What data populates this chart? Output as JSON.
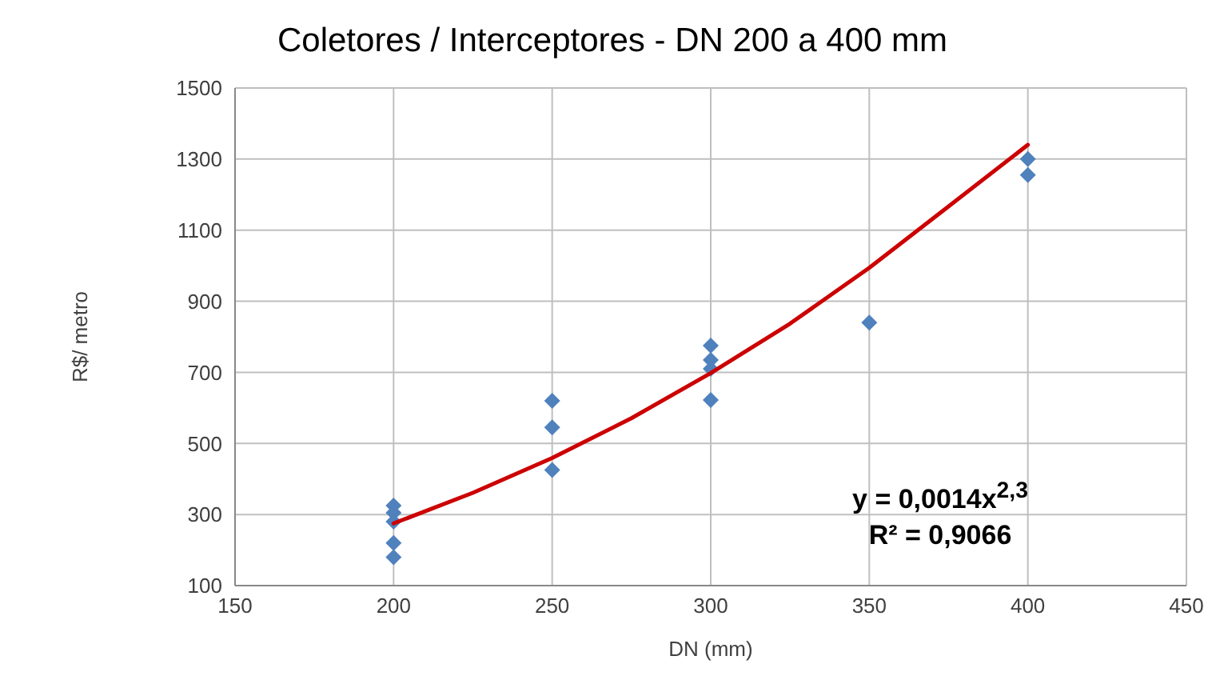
{
  "chart_data": {
    "type": "scatter",
    "title": "Coletores / Interceptores - DN 200 a 400 mm",
    "xlabel": "DN (mm)",
    "ylabel": "R$/ metro",
    "series": [
      {
        "color": "#4f81bd",
        "x": [
          200,
          200,
          200,
          200,
          200,
          250,
          250,
          250,
          300,
          300,
          300,
          300,
          350,
          400,
          400
        ],
        "values": [
          325,
          305,
          280,
          220,
          180,
          620,
          545,
          425,
          775,
          735,
          710,
          622,
          840,
          1300,
          1255
        ],
        "marker": "diamond"
      },
      {
        "type": "line",
        "color": "#cc0000",
        "x": [
          200,
          225,
          250,
          275,
          300,
          325,
          350,
          375,
          400
        ],
        "values": [
          275,
          361,
          459,
          571,
          698,
          837,
          994,
          1167,
          1340
        ],
        "marker": "none"
      }
    ],
    "annotations": [
      "y = 0,0014x$^{2,3}$",
      "R² = 0,9066"
    ],
    "xlim": [
      150,
      450
    ],
    "xticks": [
      150,
      200,
      250,
      300,
      350,
      400,
      450
    ],
    "ylim": [
      100,
      1500
    ],
    "yticks": [
      100,
      300,
      500,
      700,
      900,
      1100,
      1300,
      1500
    ],
    "grid": true,
    "legend": false
  }
}
